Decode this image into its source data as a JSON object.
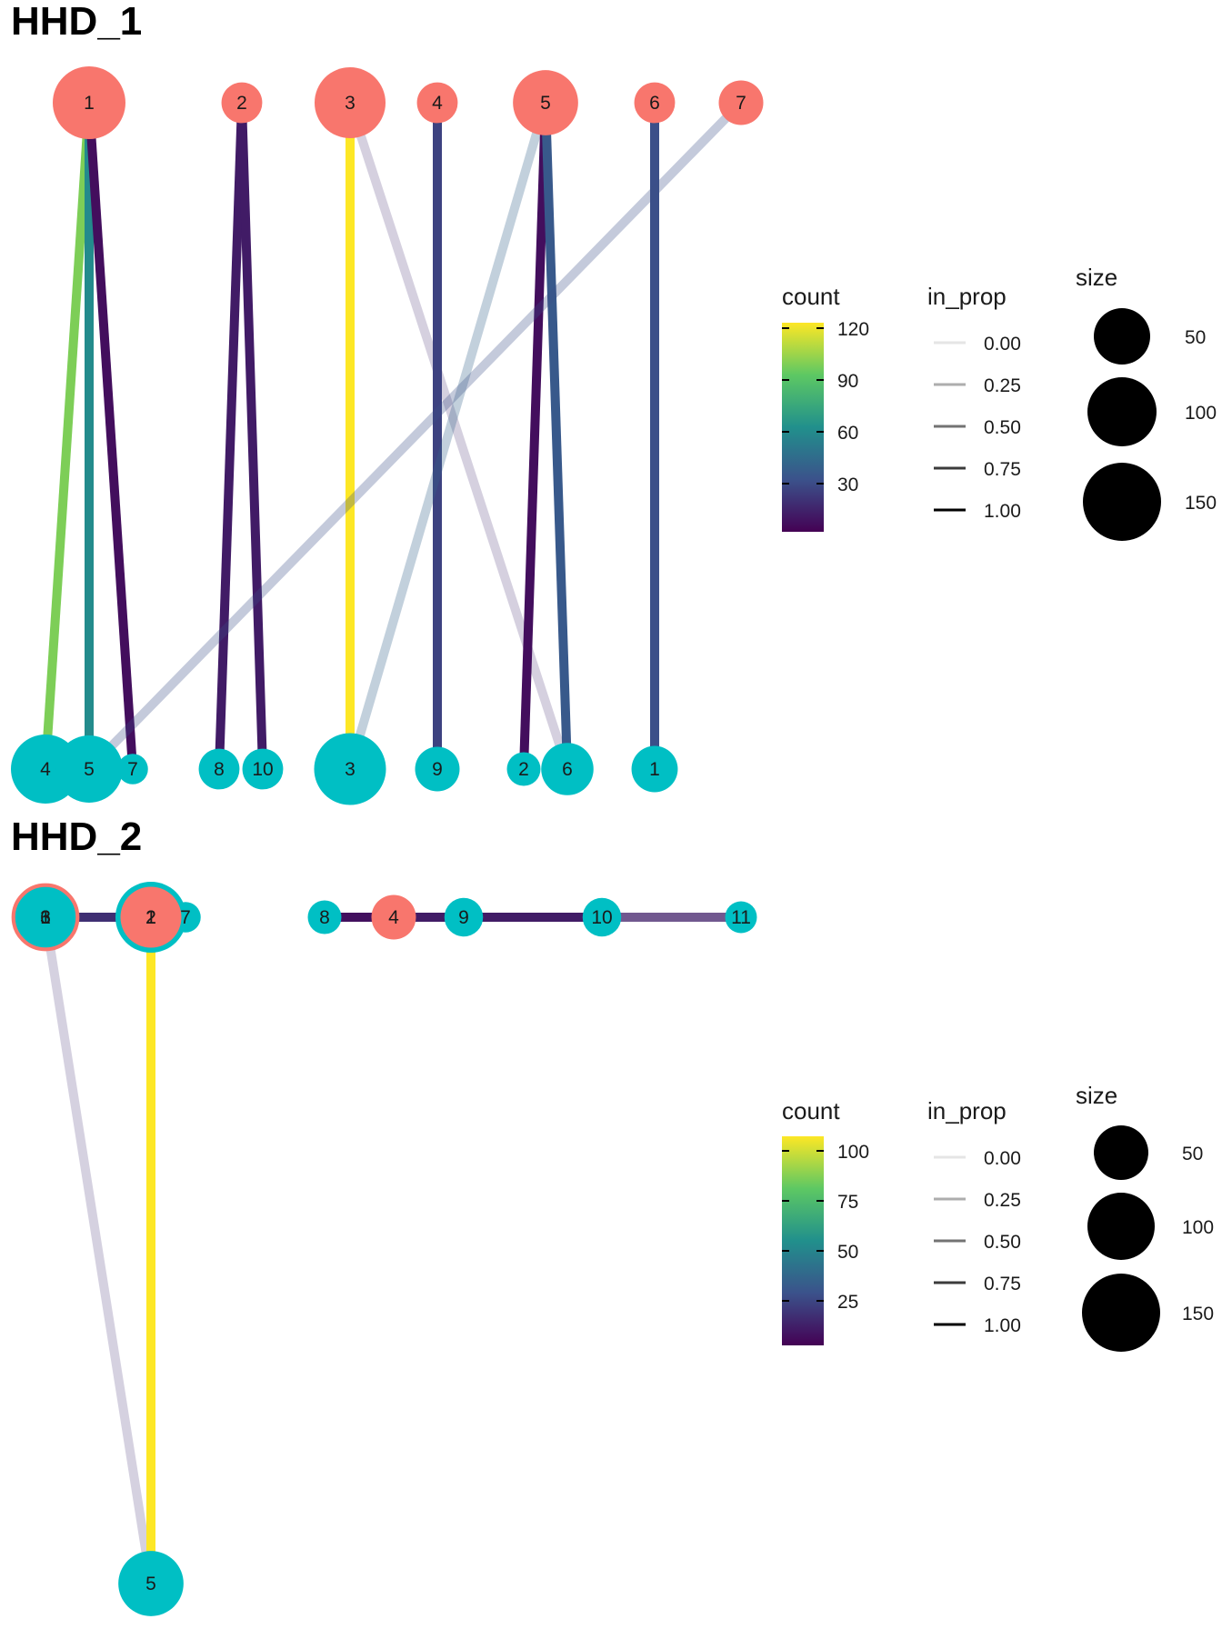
{
  "colors": {
    "source_node": "#F8766D",
    "target_node": "#00BFC4",
    "viridis": [
      "#440154",
      "#3B528B",
      "#21908C",
      "#5DC863",
      "#FDE725"
    ]
  },
  "panels": [
    {
      "title": "HHD_1",
      "sources": [
        {
          "label": "1",
          "size": 160
        },
        {
          "label": "2",
          "size": 30
        },
        {
          "label": "3",
          "size": 150
        },
        {
          "label": "4",
          "size": 30
        },
        {
          "label": "5",
          "size": 120
        },
        {
          "label": "6",
          "size": 30
        },
        {
          "label": "7",
          "size": 40
        }
      ],
      "targets": [
        {
          "label": "4",
          "size": 140
        },
        {
          "label": "5",
          "size": 130
        },
        {
          "label": "7",
          "size": 10
        },
        {
          "label": "8",
          "size": 30
        },
        {
          "label": "10",
          "size": 30
        },
        {
          "label": "3",
          "size": 155
        },
        {
          "label": "9",
          "size": 40
        },
        {
          "label": "2",
          "size": 15
        },
        {
          "label": "6",
          "size": 65
        },
        {
          "label": "1",
          "size": 45
        }
      ],
      "edges": [
        {
          "from": 0,
          "to": 0,
          "count": 100,
          "in_prop": 1.0
        },
        {
          "from": 0,
          "to": 1,
          "count": 60,
          "in_prop": 1.0
        },
        {
          "from": 0,
          "to": 2,
          "count": 5,
          "in_prop": 1.0
        },
        {
          "from": 1,
          "to": 3,
          "count": 10,
          "in_prop": 1.0
        },
        {
          "from": 1,
          "to": 4,
          "count": 10,
          "in_prop": 1.0
        },
        {
          "from": 2,
          "to": 5,
          "count": 125,
          "in_prop": 1.0
        },
        {
          "from": 2,
          "to": 8,
          "count": 15,
          "in_prop": 0.2
        },
        {
          "from": 3,
          "to": 6,
          "count": 25,
          "in_prop": 1.0
        },
        {
          "from": 4,
          "to": 5,
          "count": 40,
          "in_prop": 0.3
        },
        {
          "from": 4,
          "to": 7,
          "count": 5,
          "in_prop": 1.0
        },
        {
          "from": 4,
          "to": 8,
          "count": 35,
          "in_prop": 1.0
        },
        {
          "from": 5,
          "to": 9,
          "count": 30,
          "in_prop": 1.0
        },
        {
          "from": 6,
          "to": 1,
          "count": 30,
          "in_prop": 0.3
        }
      ],
      "legend": {
        "count_title": "count",
        "count_ticks": [
          "120",
          "90",
          "60",
          "30"
        ],
        "prop_title": "in_prop",
        "prop_labels": [
          "0.00",
          "0.25",
          "0.50",
          "0.75",
          "1.00"
        ],
        "size_title": "size",
        "size_labels": [
          "50",
          "100",
          "150"
        ]
      }
    },
    {
      "title": "HHD_2",
      "sources": [
        {
          "label": "1",
          "size": 120
        },
        {
          "label": "2",
          "size": 100
        },
        {
          "label": "3",
          "size": 110
        },
        {
          "label": "4",
          "size": 40
        }
      ],
      "targets": [
        {
          "label": "6",
          "size": 110
        },
        {
          "label": "3",
          "size": 110
        },
        {
          "label": "1",
          "size": 140
        },
        {
          "label": "2",
          "size": 150
        },
        {
          "label": "7",
          "size": 10
        },
        {
          "label": "8",
          "size": 15
        },
        {
          "label": "9",
          "size": 25
        },
        {
          "label": "10",
          "size": 25
        },
        {
          "label": "11",
          "size": 12
        },
        {
          "label": "5",
          "size": 120
        }
      ],
      "edges": [
        {
          "from": 0,
          "to": 9,
          "count": 15,
          "in_prop": 0.15
        },
        {
          "from": 1,
          "to": 9,
          "count": 105,
          "in_prop": 1.0
        },
        {
          "from": 0,
          "to": 2,
          "count": 15,
          "in_prop": 1.0
        },
        {
          "from": 1,
          "to": 4,
          "count": 5,
          "in_prop": 1.0
        },
        {
          "from": 3,
          "to": 5,
          "count": 5,
          "in_prop": 1.0
        },
        {
          "from": 3,
          "to": 6,
          "count": 5,
          "in_prop": 1.0
        },
        {
          "from": 3,
          "to": 7,
          "count": 5,
          "in_prop": 1.0
        },
        {
          "from": 3,
          "to": 8,
          "count": 10,
          "in_prop": 0.75
        }
      ],
      "legend": {
        "count_title": "count",
        "count_ticks": [
          "100",
          "75",
          "50",
          "25"
        ],
        "prop_title": "in_prop",
        "prop_labels": [
          "0.00",
          "0.25",
          "0.50",
          "0.75",
          "1.00"
        ],
        "size_title": "size",
        "size_labels": [
          "50",
          "100",
          "150"
        ]
      }
    }
  ]
}
